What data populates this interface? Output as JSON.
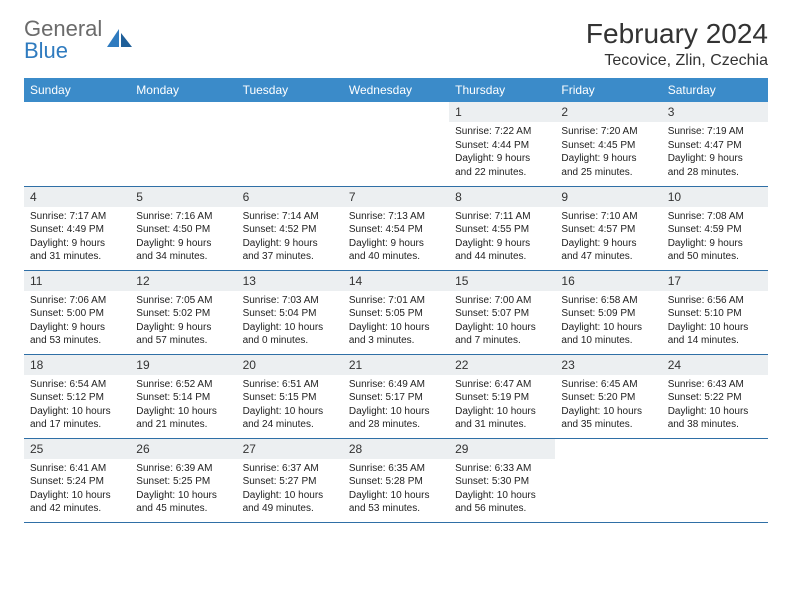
{
  "brand": {
    "part1": "General",
    "part2": "Blue"
  },
  "title": "February 2024",
  "location": "Tecovice, Zlin, Czechia",
  "colors": {
    "header_bg": "#3b8bc9",
    "header_text": "#ffffff",
    "row_border": "#2f6fa6",
    "daynum_bg": "#eceff1",
    "logo_gray": "#6b6b6b",
    "logo_blue": "#2f7bbf"
  },
  "columns": [
    "Sunday",
    "Monday",
    "Tuesday",
    "Wednesday",
    "Thursday",
    "Friday",
    "Saturday"
  ],
  "weeks": [
    [
      null,
      null,
      null,
      null,
      {
        "num": "1",
        "sunrise": "7:22 AM",
        "sunset": "4:44 PM",
        "daylight": "9 hours and 22 minutes."
      },
      {
        "num": "2",
        "sunrise": "7:20 AM",
        "sunset": "4:45 PM",
        "daylight": "9 hours and 25 minutes."
      },
      {
        "num": "3",
        "sunrise": "7:19 AM",
        "sunset": "4:47 PM",
        "daylight": "9 hours and 28 minutes."
      }
    ],
    [
      {
        "num": "4",
        "sunrise": "7:17 AM",
        "sunset": "4:49 PM",
        "daylight": "9 hours and 31 minutes."
      },
      {
        "num": "5",
        "sunrise": "7:16 AM",
        "sunset": "4:50 PM",
        "daylight": "9 hours and 34 minutes."
      },
      {
        "num": "6",
        "sunrise": "7:14 AM",
        "sunset": "4:52 PM",
        "daylight": "9 hours and 37 minutes."
      },
      {
        "num": "7",
        "sunrise": "7:13 AM",
        "sunset": "4:54 PM",
        "daylight": "9 hours and 40 minutes."
      },
      {
        "num": "8",
        "sunrise": "7:11 AM",
        "sunset": "4:55 PM",
        "daylight": "9 hours and 44 minutes."
      },
      {
        "num": "9",
        "sunrise": "7:10 AM",
        "sunset": "4:57 PM",
        "daylight": "9 hours and 47 minutes."
      },
      {
        "num": "10",
        "sunrise": "7:08 AM",
        "sunset": "4:59 PM",
        "daylight": "9 hours and 50 minutes."
      }
    ],
    [
      {
        "num": "11",
        "sunrise": "7:06 AM",
        "sunset": "5:00 PM",
        "daylight": "9 hours and 53 minutes."
      },
      {
        "num": "12",
        "sunrise": "7:05 AM",
        "sunset": "5:02 PM",
        "daylight": "9 hours and 57 minutes."
      },
      {
        "num": "13",
        "sunrise": "7:03 AM",
        "sunset": "5:04 PM",
        "daylight": "10 hours and 0 minutes."
      },
      {
        "num": "14",
        "sunrise": "7:01 AM",
        "sunset": "5:05 PM",
        "daylight": "10 hours and 3 minutes."
      },
      {
        "num": "15",
        "sunrise": "7:00 AM",
        "sunset": "5:07 PM",
        "daylight": "10 hours and 7 minutes."
      },
      {
        "num": "16",
        "sunrise": "6:58 AM",
        "sunset": "5:09 PM",
        "daylight": "10 hours and 10 minutes."
      },
      {
        "num": "17",
        "sunrise": "6:56 AM",
        "sunset": "5:10 PM",
        "daylight": "10 hours and 14 minutes."
      }
    ],
    [
      {
        "num": "18",
        "sunrise": "6:54 AM",
        "sunset": "5:12 PM",
        "daylight": "10 hours and 17 minutes."
      },
      {
        "num": "19",
        "sunrise": "6:52 AM",
        "sunset": "5:14 PM",
        "daylight": "10 hours and 21 minutes."
      },
      {
        "num": "20",
        "sunrise": "6:51 AM",
        "sunset": "5:15 PM",
        "daylight": "10 hours and 24 minutes."
      },
      {
        "num": "21",
        "sunrise": "6:49 AM",
        "sunset": "5:17 PM",
        "daylight": "10 hours and 28 minutes."
      },
      {
        "num": "22",
        "sunrise": "6:47 AM",
        "sunset": "5:19 PM",
        "daylight": "10 hours and 31 minutes."
      },
      {
        "num": "23",
        "sunrise": "6:45 AM",
        "sunset": "5:20 PM",
        "daylight": "10 hours and 35 minutes."
      },
      {
        "num": "24",
        "sunrise": "6:43 AM",
        "sunset": "5:22 PM",
        "daylight": "10 hours and 38 minutes."
      }
    ],
    [
      {
        "num": "25",
        "sunrise": "6:41 AM",
        "sunset": "5:24 PM",
        "daylight": "10 hours and 42 minutes."
      },
      {
        "num": "26",
        "sunrise": "6:39 AM",
        "sunset": "5:25 PM",
        "daylight": "10 hours and 45 minutes."
      },
      {
        "num": "27",
        "sunrise": "6:37 AM",
        "sunset": "5:27 PM",
        "daylight": "10 hours and 49 minutes."
      },
      {
        "num": "28",
        "sunrise": "6:35 AM",
        "sunset": "5:28 PM",
        "daylight": "10 hours and 53 minutes."
      },
      {
        "num": "29",
        "sunrise": "6:33 AM",
        "sunset": "5:30 PM",
        "daylight": "10 hours and 56 minutes."
      },
      null,
      null
    ]
  ],
  "labels": {
    "sunrise": "Sunrise: ",
    "sunset": "Sunset: ",
    "daylight": "Daylight: "
  }
}
